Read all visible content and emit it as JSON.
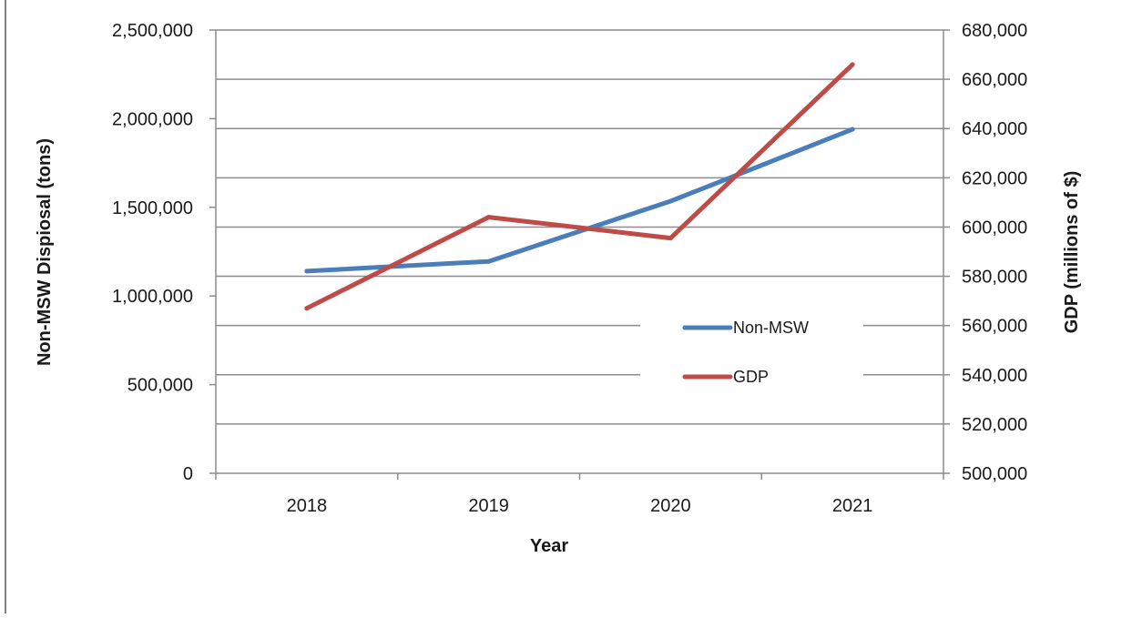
{
  "chart_data": {
    "type": "line",
    "title": "",
    "xlabel": "Year",
    "ylabel": "Non-MSW Dispiosal (tons)",
    "y2label": "GDP (millions of $)",
    "categories": [
      "2018",
      "2019",
      "2020",
      "2021"
    ],
    "ylim": [
      0,
      2500000
    ],
    "y2lim": [
      500000,
      680000
    ],
    "yticks": [
      "0",
      "500,000",
      "1,000,000",
      "1,500,000",
      "2,000,000",
      "2,500,000"
    ],
    "y2ticks": [
      "500,000",
      "520,000",
      "540,000",
      "560,000",
      "580,000",
      "600,000",
      "620,000",
      "640,000",
      "660,000",
      "680,000"
    ],
    "grid": true,
    "legend_position": "center-right",
    "series": [
      {
        "name": "Non-MSW",
        "axis": "left",
        "color": "#4A7EBB",
        "values": [
          1140000,
          1195000,
          1535000,
          1940000
        ]
      },
      {
        "name": "GDP",
        "axis": "right",
        "color": "#BE4B48",
        "values": [
          567000,
          604000,
          595500,
          666000
        ]
      }
    ]
  }
}
